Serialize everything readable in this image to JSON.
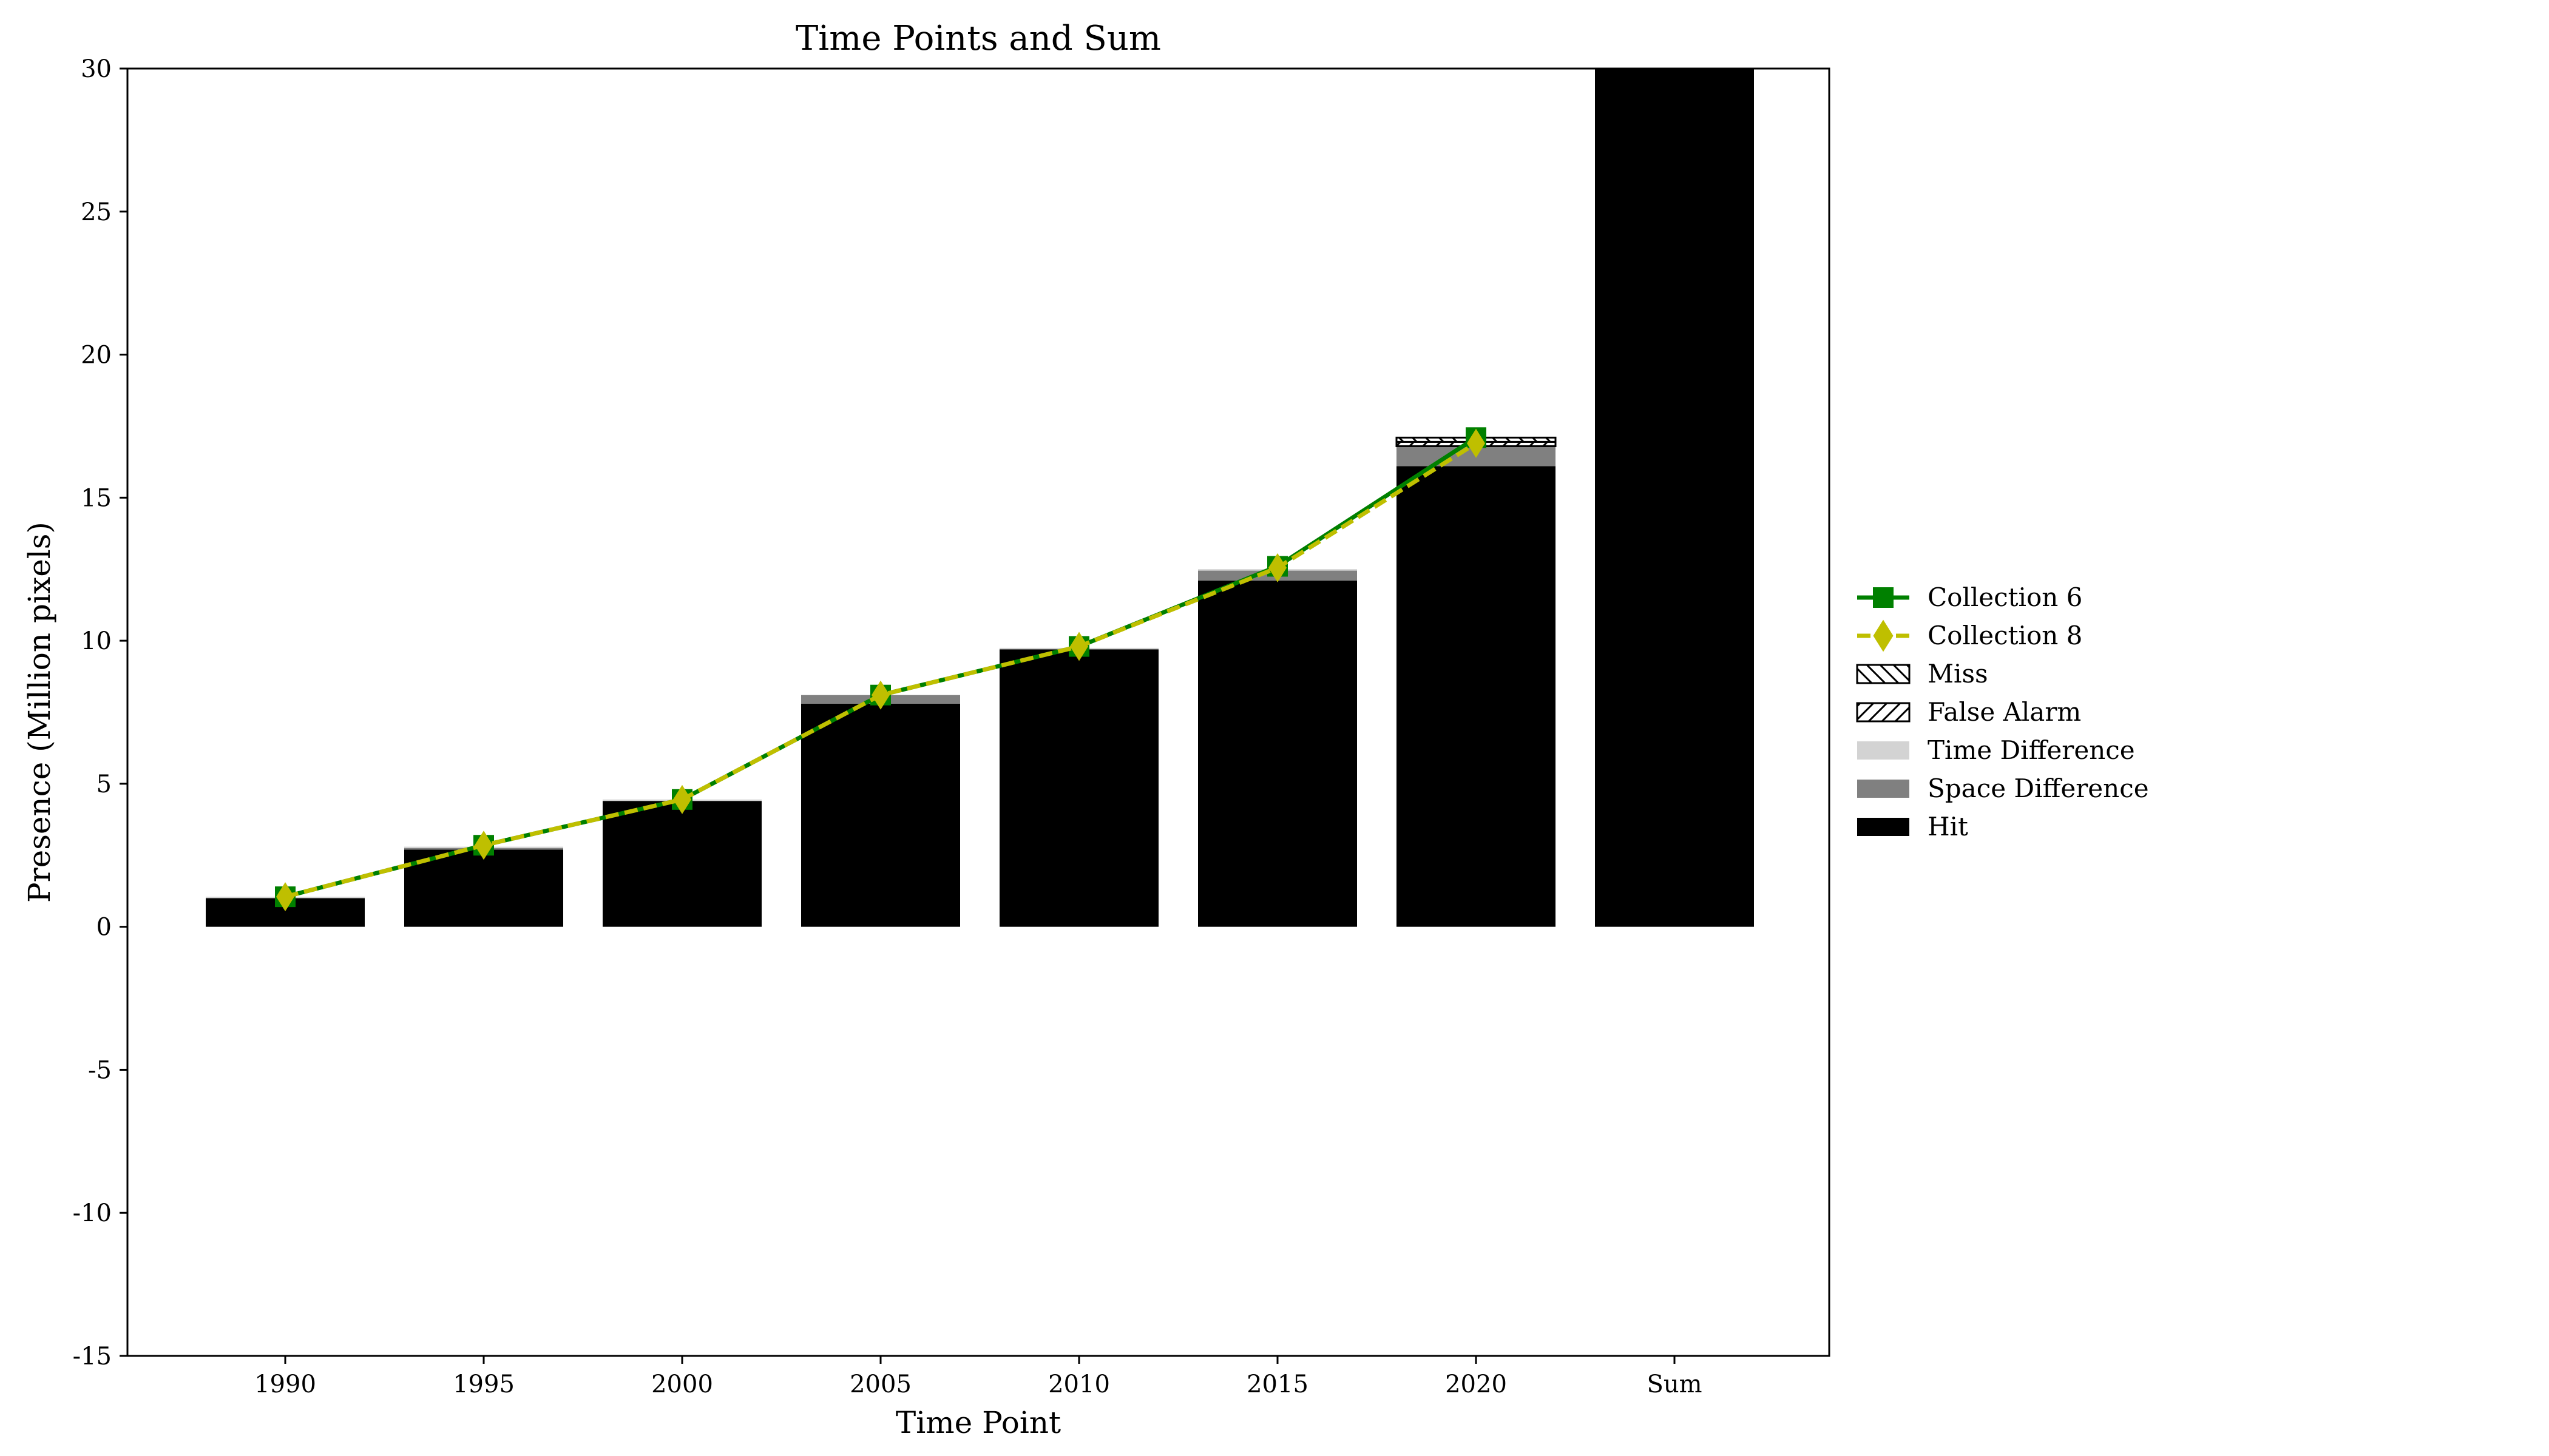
{
  "chart_data": {
    "type": "bar",
    "title": "Time Points and Sum",
    "xlabel": "Time Point",
    "ylabel": "Presence (Million pixels)",
    "ylim": [
      -15,
      30
    ],
    "yticks": [
      -15,
      -10,
      -5,
      0,
      5,
      10,
      15,
      20,
      25,
      30
    ],
    "ytick_labels": [
      "-15",
      "-10",
      "-5",
      "0",
      "5",
      "10",
      "15",
      "20",
      "25",
      "30"
    ],
    "categories": [
      "1990",
      "1995",
      "2000",
      "2005",
      "2010",
      "2015",
      "2020",
      "Sum"
    ],
    "stacked_series": [
      {
        "name": "Hit",
        "color": "#000000",
        "hatch": "none",
        "values": [
          1.0,
          2.7,
          4.4,
          7.8,
          9.7,
          12.1,
          16.1,
          30
        ]
      },
      {
        "name": "Space Difference",
        "color": "#808080",
        "hatch": "none",
        "values": [
          0.0,
          0.05,
          0.0,
          0.3,
          0.0,
          0.35,
          0.7,
          0
        ]
      },
      {
        "name": "Time Difference",
        "color": "#d3d3d3",
        "hatch": "none",
        "values": [
          0.05,
          0.05,
          0.05,
          0.0,
          0.05,
          0.05,
          0.0,
          0
        ]
      },
      {
        "name": "False Alarm",
        "color": "#ffffff",
        "hatch": "forward",
        "values": [
          0.0,
          0.0,
          0.0,
          0.0,
          0.0,
          0.0,
          0.15,
          0
        ]
      },
      {
        "name": "Miss",
        "color": "#ffffff",
        "hatch": "back",
        "values": [
          0.0,
          0.0,
          0.0,
          0.0,
          0.0,
          0.0,
          0.15,
          0
        ]
      }
    ],
    "line_series": [
      {
        "name": "Collection 6",
        "color": "#008000",
        "marker": "square",
        "dash": "solid",
        "x": [
          "1990",
          "1995",
          "2000",
          "2005",
          "2010",
          "2015",
          "2020"
        ],
        "values": [
          1.05,
          2.85,
          4.45,
          8.1,
          9.8,
          12.6,
          17.1
        ]
      },
      {
        "name": "Collection 8",
        "color": "#bfbf00",
        "marker": "diamond",
        "dash": "dashed",
        "x": [
          "1990",
          "1995",
          "2000",
          "2005",
          "2010",
          "2015",
          "2020"
        ],
        "values": [
          1.05,
          2.85,
          4.45,
          8.1,
          9.8,
          12.55,
          16.9
        ]
      }
    ],
    "legend": {
      "placement": "outside-right",
      "entries": [
        "Collection 6",
        "Collection 8",
        "Miss",
        "False Alarm",
        "Time Difference",
        "Space Difference",
        "Hit"
      ]
    },
    "grid": false
  }
}
